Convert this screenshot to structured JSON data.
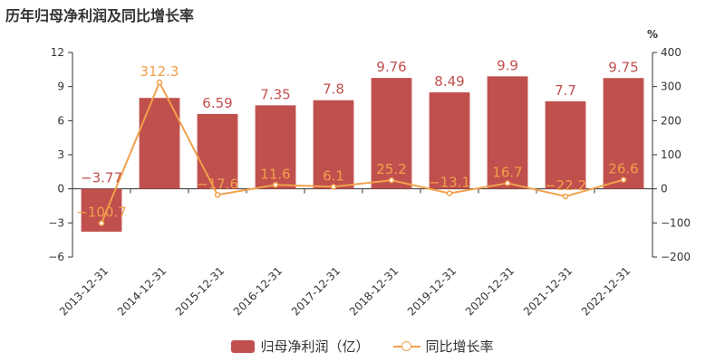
{
  "title": "历年归母净利润及同比增长率",
  "colors": {
    "bar": "#c0504d",
    "line": "#f1a04b",
    "axis": "#333333",
    "grid": "#e6e6e6"
  },
  "chart_data": {
    "type": "bar",
    "title": "历年归母净利润及同比增长率",
    "categories": [
      "2013-12-31",
      "2014-12-31",
      "2015-12-31",
      "2016-12-31",
      "2017-12-31",
      "2018-12-31",
      "2019-12-31",
      "2020-12-31",
      "2021-12-31",
      "2022-12-31"
    ],
    "series": [
      {
        "name": "归母净利润（亿）",
        "type": "bar",
        "axis": "left",
        "values": [
          -3.77,
          8,
          6.59,
          7.35,
          7.8,
          9.76,
          8.49,
          9.9,
          7.7,
          9.75
        ],
        "labels": [
          "−3.77",
          "",
          "6.59",
          "7.35",
          "7.8",
          "9.76",
          "8.49",
          "9.9",
          "7.7",
          "9.75"
        ]
      },
      {
        "name": "同比增长率",
        "type": "line",
        "axis": "right",
        "values": [
          -100.7,
          312.3,
          -17.6,
          11.6,
          6.1,
          25.2,
          -13.1,
          16.7,
          -22.2,
          26.6
        ],
        "labels": [
          "−100.7",
          "312.3",
          "−17.6",
          "11.6",
          "6.1",
          "25.2",
          "−13.1",
          "16.7",
          "−22.2",
          "26.6"
        ]
      }
    ],
    "y_left": {
      "min": -6,
      "max": 12,
      "ticks": [
        "−6",
        "−3",
        "0",
        "3",
        "6",
        "9",
        "12"
      ]
    },
    "y_right": {
      "min": -200,
      "max": 400,
      "unit": "%",
      "ticks": [
        "−200",
        "−100",
        "0",
        "100",
        "200",
        "300",
        "400"
      ]
    },
    "grid": false,
    "legend_position": "bottom"
  }
}
